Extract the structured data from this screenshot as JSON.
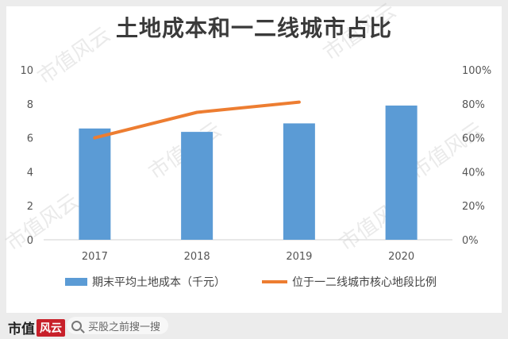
{
  "chart_data": {
    "type": "bar",
    "title": "土地成本和一二线城市占比",
    "categories": [
      "2017",
      "2018",
      "2019",
      "2020"
    ],
    "series": [
      {
        "name": "期末平均土地成本（千元）",
        "type": "bar",
        "axis": "left",
        "color": "#5b9bd5",
        "values": [
          6.55,
          6.35,
          6.85,
          7.9
        ]
      },
      {
        "name": "位于一二线城市核心地段比例",
        "type": "line",
        "axis": "right",
        "color": "#ed7d31",
        "values": [
          0.6,
          0.75,
          0.81,
          null
        ]
      }
    ],
    "y_left": {
      "min": 0,
      "max": 10,
      "ticks": [
        "0",
        "2",
        "4",
        "6",
        "8",
        "10"
      ]
    },
    "y_right": {
      "min": 0,
      "max": 1,
      "ticks": [
        "0%",
        "20%",
        "40%",
        "60%",
        "80%",
        "100%"
      ]
    },
    "grid": false,
    "legend_position": "bottom"
  },
  "watermark_text": "市值风云",
  "footer": {
    "brand": "市值",
    "brand_badge": "风云",
    "search_text": "买股之前搜一搜"
  }
}
